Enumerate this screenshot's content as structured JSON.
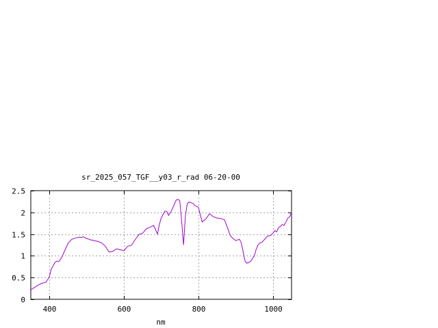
{
  "chart_data": {
    "type": "line",
    "title": "sr_2025_057_TGF__y03_r_rad 06-20-00",
    "xlabel": "nm",
    "ylabel": "",
    "xlim": [
      350,
      1050
    ],
    "ylim": [
      0,
      2.5
    ],
    "xticks": [
      400,
      600,
      800,
      1000
    ],
    "xtick_labels": [
      "400",
      "600",
      "800",
      "1000"
    ],
    "yticks": [
      0,
      0.5,
      1,
      1.5,
      2,
      2.5
    ],
    "ytick_labels": [
      "0",
      "0.5",
      "1",
      "1.5",
      "2",
      "2.5"
    ],
    "grid": true,
    "line_color": "#a000d0",
    "series": [
      {
        "x": [
          350,
          360,
          370,
          380,
          390,
          395,
          400,
          405,
          410,
          415,
          420,
          425,
          430,
          435,
          440,
          450,
          460,
          470,
          480,
          485,
          490,
          495,
          500,
          510,
          520,
          530,
          540,
          550,
          560,
          570,
          580,
          590,
          600,
          610,
          620,
          630,
          640,
          650,
          660,
          670,
          680,
          690,
          695,
          700,
          710,
          715,
          720,
          725,
          730,
          740,
          745,
          750,
          755,
          760,
          762,
          765,
          770,
          775,
          780,
          785,
          790,
          795,
          800,
          810,
          820,
          830,
          840,
          850,
          860,
          870,
          880,
          885,
          890,
          900,
          910,
          915,
          920,
          925,
          930,
          935,
          940,
          950,
          955,
          960,
          965,
          970,
          980,
          985,
          990,
          995,
          1000,
          1005,
          1010,
          1015,
          1020,
          1025,
          1030,
          1035,
          1040,
          1045,
          1050
        ],
        "y": [
          0.22,
          0.27,
          0.33,
          0.37,
          0.39,
          0.45,
          0.52,
          0.7,
          0.77,
          0.85,
          0.88,
          0.87,
          0.92,
          1.0,
          1.1,
          1.29,
          1.38,
          1.41,
          1.43,
          1.42,
          1.44,
          1.42,
          1.4,
          1.37,
          1.35,
          1.33,
          1.3,
          1.22,
          1.09,
          1.1,
          1.16,
          1.14,
          1.12,
          1.22,
          1.24,
          1.37,
          1.49,
          1.52,
          1.62,
          1.66,
          1.7,
          1.5,
          1.72,
          1.87,
          2.03,
          2.02,
          1.93,
          2.0,
          2.08,
          2.28,
          2.3,
          2.27,
          1.8,
          1.25,
          1.5,
          1.92,
          2.2,
          2.24,
          2.22,
          2.21,
          2.16,
          2.14,
          2.12,
          1.78,
          1.85,
          1.97,
          1.9,
          1.87,
          1.86,
          1.83,
          1.6,
          1.48,
          1.42,
          1.35,
          1.38,
          1.3,
          1.1,
          0.88,
          0.83,
          0.85,
          0.87,
          1.0,
          1.15,
          1.25,
          1.3,
          1.31,
          1.4,
          1.45,
          1.46,
          1.48,
          1.52,
          1.58,
          1.55,
          1.65,
          1.68,
          1.72,
          1.7,
          1.78,
          1.87,
          1.9,
          2.0
        ]
      }
    ]
  }
}
